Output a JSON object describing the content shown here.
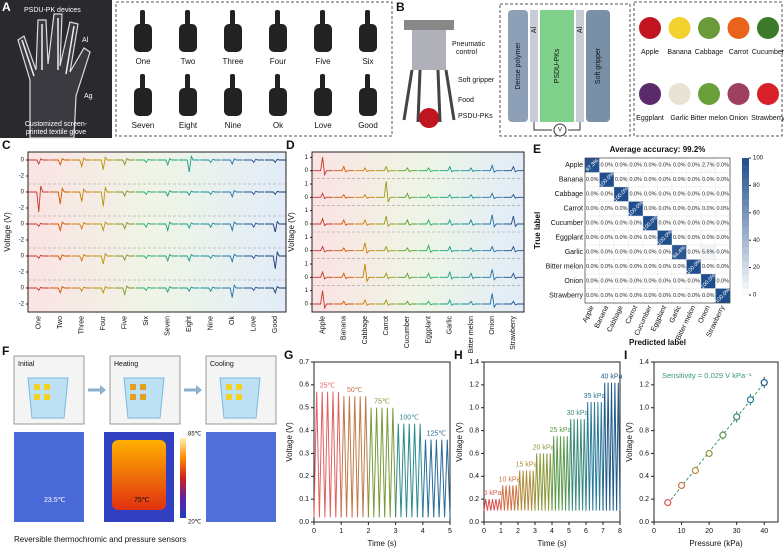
{
  "panels": {
    "A": {
      "letter": "A",
      "labels": [
        "PSDU-PK devices",
        "Al",
        "Ag",
        "Customized screen-",
        "printed textile glove"
      ],
      "gestures": [
        "One",
        "Two",
        "Three",
        "Four",
        "Five",
        "Six",
        "Seven",
        "Eight",
        "Nine",
        "Ok",
        "Love",
        "Good"
      ]
    },
    "B": {
      "letter": "B",
      "labels": [
        "Pneumatic",
        "control",
        "Soft gripper",
        "Food",
        "PSDU-PKs"
      ],
      "inset": [
        "Dense polymer",
        "Al",
        "PSDU-PKs",
        "Al",
        "Soft gripper",
        "V"
      ],
      "fruits": [
        {
          "name": "Apple",
          "color": "#c0141e"
        },
        {
          "name": "Banana",
          "color": "#f2d22e"
        },
        {
          "name": "Cabbage",
          "color": "#6a9a3a"
        },
        {
          "name": "Carrot",
          "color": "#e8641c"
        },
        {
          "name": "Cucumber",
          "color": "#3a7a2a"
        },
        {
          "name": "Eggplant",
          "color": "#5a2a6a"
        },
        {
          "name": "Garlic",
          "color": "#e8e2d4"
        },
        {
          "name": "Bitter melon",
          "color": "#6aa03a"
        },
        {
          "name": "Onion",
          "color": "#a04060"
        },
        {
          "name": "Strawberry",
          "color": "#d8202a"
        }
      ]
    },
    "F": {
      "letter": "F",
      "stages": [
        "Initial",
        "Heating",
        "Cooling"
      ],
      "temps": [
        "23.5℃",
        "75℃"
      ],
      "scale": [
        "85℃",
        "20℃"
      ],
      "caption": "Reversible thermochromic and pressure sensors"
    }
  },
  "chart_data": [
    {
      "type": "signal",
      "panel": "C",
      "ylabel": "Voltage (V)",
      "categories": [
        "One",
        "Two",
        "Three",
        "Four",
        "Five",
        "Six",
        "Seven",
        "Eight",
        "Nine",
        "Ok",
        "Love",
        "Good"
      ],
      "category_colors": [
        "#c0392b",
        "#d35400",
        "#c87f0a",
        "#b7950b",
        "#7d9a2a",
        "#27ae60",
        "#1e9c7a",
        "#16a085",
        "#1a8a9a",
        "#2471a3",
        "#1f4e8c",
        "#1a3a6a"
      ],
      "channel_ylim": [
        -3,
        1
      ],
      "channel_ticks": [
        0,
        -2
      ],
      "series": [
        {
          "values": [
            -0.5,
            -0.6,
            -0.8,
            -1.2,
            -0.6,
            -0.3,
            -0.6,
            -1.5,
            -0.3,
            -0.5,
            -0.3,
            -0.3
          ]
        },
        {
          "values": [
            -2.5,
            -1.5,
            -1.2,
            -1.8,
            -0.5,
            -0.3,
            -0.5,
            -0.4,
            -0.3,
            -0.6,
            -0.3,
            -0.3
          ]
        },
        {
          "values": [
            -0.3,
            -0.8,
            -0.6,
            -0.8,
            -0.6,
            -0.4,
            -0.8,
            -0.5,
            -0.4,
            -0.8,
            -0.4,
            -1.0
          ]
        },
        {
          "values": [
            -0.3,
            -0.5,
            -0.6,
            -1.0,
            -0.5,
            -0.3,
            -0.6,
            -0.6,
            -0.3,
            -0.7,
            -0.3,
            -1.6
          ]
        },
        {
          "values": [
            -0.3,
            -0.6,
            -0.4,
            -0.6,
            -0.8,
            -0.3,
            -0.5,
            -0.4,
            -0.4,
            -1.2,
            -0.3,
            -0.6
          ]
        }
      ]
    },
    {
      "type": "signal",
      "panel": "D",
      "ylabel": "Voltage (V)",
      "categories": [
        "Apple",
        "Banana",
        "Cabbage",
        "Carrot",
        "Cucumber",
        "Eggplant",
        "Garlic",
        "Bitter melon",
        "Onion",
        "Strawberry"
      ],
      "category_colors": [
        "#c0392b",
        "#d35400",
        "#c87f0a",
        "#9a9a1a",
        "#5aa02a",
        "#27ae60",
        "#16a085",
        "#1a8a9a",
        "#2471a3",
        "#1f4e8c"
      ],
      "channel_ylim": [
        -0.6,
        1.4
      ],
      "channel_ticks": [
        1,
        0
      ],
      "series": [
        {
          "values": [
            1.0,
            0.3,
            0.2,
            0.3,
            0.2,
            0.2,
            0.3,
            0.2,
            0.4,
            0.3
          ]
        },
        {
          "values": [
            0.3,
            0.2,
            0.2,
            1.2,
            0.3,
            0.2,
            0.2,
            0.2,
            0.3,
            0.2
          ]
        },
        {
          "values": [
            0.4,
            0.3,
            0.3,
            0.6,
            0.3,
            0.3,
            0.3,
            0.3,
            0.7,
            0.6
          ]
        },
        {
          "values": [
            0.3,
            0.2,
            0.6,
            0.3,
            0.2,
            0.4,
            0.3,
            0.2,
            0.3,
            0.3
          ]
        },
        {
          "values": [
            0.4,
            0.3,
            1.0,
            0.3,
            0.3,
            0.3,
            0.4,
            0.3,
            0.6,
            0.3
          ]
        },
        {
          "values": [
            1.0,
            0.2,
            0.3,
            0.3,
            0.2,
            0.2,
            0.3,
            0.2,
            0.8,
            0.2
          ]
        }
      ]
    },
    {
      "type": "heatmap",
      "panel": "E",
      "title": "Average accuracy: 99.2%",
      "xlabel": "Predicted label",
      "ylabel": "True label",
      "categories": [
        "Apple",
        "Banana",
        "Cabbage",
        "Carrot",
        "Cucumber",
        "Eggplant",
        "Garlic",
        "Bitter melon",
        "Onion",
        "Strawberry"
      ],
      "color": "#1f4e8c",
      "clim": [
        0,
        100
      ],
      "cticks": [
        0,
        20,
        40,
        60,
        80,
        100
      ],
      "values": [
        [
          97.3,
          0,
          0,
          0,
          0,
          0,
          0,
          0,
          2.7,
          0
        ],
        [
          0,
          100,
          0,
          0,
          0,
          0,
          0,
          0,
          0,
          0
        ],
        [
          0,
          0,
          100,
          0,
          0,
          0,
          0,
          0,
          0,
          0
        ],
        [
          0,
          0,
          0,
          100,
          0,
          0,
          0,
          0,
          0,
          0
        ],
        [
          0,
          0,
          0,
          0,
          100,
          0,
          0,
          0,
          0,
          0
        ],
        [
          0,
          0,
          0,
          0,
          0,
          100,
          0,
          0,
          0,
          0
        ],
        [
          0,
          0,
          0,
          0,
          0,
          0,
          94.4,
          0,
          5.6,
          0
        ],
        [
          0,
          0,
          0,
          0,
          0,
          0,
          0,
          100,
          0,
          0
        ],
        [
          0,
          0,
          0,
          0,
          0,
          0,
          0,
          0,
          100,
          0
        ],
        [
          0,
          0,
          0,
          0,
          0,
          0,
          0,
          0,
          0,
          100
        ]
      ],
      "value_labels": [
        [
          "97.3%",
          "0.0%",
          "0.0%",
          "0.0%",
          "0.0%",
          "0.0%",
          "0.0%",
          "0.0%",
          "2.7%",
          "0.0%"
        ],
        [
          "0.0%",
          "100.0%",
          "0.0%",
          "0.0%",
          "0.0%",
          "0.0%",
          "0.0%",
          "0.0%",
          "0.0%",
          "0.0%"
        ],
        [
          "0.0%",
          "0.0%",
          "100.0%",
          "0.0%",
          "0.0%",
          "0.0%",
          "0.0%",
          "0.0%",
          "0.0%",
          "0.0%"
        ],
        [
          "0.0%",
          "0.0%",
          "0.0%",
          "100.0%",
          "0.0%",
          "0.0%",
          "0.0%",
          "0.0%",
          "0.0%",
          "0.0%"
        ],
        [
          "0.0%",
          "0.0%",
          "0.0%",
          "0.0%",
          "100.0%",
          "0.0%",
          "0.0%",
          "0.0%",
          "0.0%",
          "0.0%"
        ],
        [
          "0.0%",
          "0.0%",
          "0.0%",
          "0.0%",
          "0.0%",
          "100.0%",
          "0.0%",
          "0.0%",
          "0.0%",
          "0.0%"
        ],
        [
          "0.0%",
          "0.0%",
          "0.0%",
          "0.0%",
          "0.0%",
          "0.0%",
          "94.4%",
          "0.0%",
          "5.6%",
          "0.0%"
        ],
        [
          "0.0%",
          "0.0%",
          "0.0%",
          "0.0%",
          "0.0%",
          "0.0%",
          "0.0%",
          "100.0%",
          "0.0%",
          "0.0%"
        ],
        [
          "0.0%",
          "0.0%",
          "0.0%",
          "0.0%",
          "0.0%",
          "0.0%",
          "0.0%",
          "0.0%",
          "100.0%",
          "0.0%"
        ],
        [
          "0.0%",
          "0.0%",
          "0.0%",
          "0.0%",
          "0.0%",
          "0.0%",
          "0.0%",
          "0.0%",
          "0.0%",
          "100.0%"
        ]
      ]
    },
    {
      "type": "line",
      "panel": "G",
      "xlabel": "Time (s)",
      "ylabel": "Voltage (V)",
      "xlim": [
        0,
        5
      ],
      "xticks": [
        0,
        1,
        2,
        3,
        4,
        5
      ],
      "ylim": [
        0,
        0.7
      ],
      "yticks": [
        {
          "value": 0,
          "label": "0.0"
        },
        0.1,
        0.2,
        0.3,
        0.4,
        0.5,
        0.6,
        0.7
      ],
      "series": [
        {
          "name": "25℃",
          "color": "#e06060",
          "x": [
            0,
            0.1,
            0.2,
            0.3,
            0.4,
            0.5,
            0.6,
            0.7,
            0.8,
            0.9,
            1
          ],
          "values": [
            0.02,
            0.57,
            0.02,
            0.57,
            0.02,
            0.57,
            0.02,
            0.57,
            0.02,
            0.57,
            0.02
          ]
        },
        {
          "name": "50℃",
          "color": "#c0784a",
          "x": [
            1,
            1.1,
            1.2,
            1.3,
            1.4,
            1.5,
            1.6,
            1.7,
            1.8,
            1.9,
            2
          ],
          "values": [
            0.02,
            0.55,
            0.02,
            0.55,
            0.02,
            0.55,
            0.02,
            0.55,
            0.02,
            0.55,
            0.02
          ]
        },
        {
          "name": "75℃",
          "color": "#7a9a3a",
          "x": [
            2,
            2.1,
            2.2,
            2.3,
            2.4,
            2.5,
            2.6,
            2.7,
            2.8,
            2.9,
            3
          ],
          "values": [
            0.02,
            0.5,
            0.02,
            0.5,
            0.02,
            0.5,
            0.02,
            0.5,
            0.02,
            0.5,
            0.02
          ]
        },
        {
          "name": "100℃",
          "color": "#2e8b8b",
          "x": [
            3,
            3.1,
            3.2,
            3.3,
            3.4,
            3.5,
            3.6,
            3.7,
            3.8,
            3.9,
            4
          ],
          "values": [
            0.02,
            0.43,
            0.02,
            0.43,
            0.02,
            0.43,
            0.02,
            0.43,
            0.02,
            0.43,
            0.02
          ]
        },
        {
          "name": "125℃",
          "color": "#2a6a9a",
          "x": [
            4,
            4.1,
            4.2,
            4.3,
            4.4,
            4.5,
            4.6,
            4.7,
            4.8,
            4.9,
            5
          ],
          "values": [
            0.02,
            0.36,
            0.02,
            0.36,
            0.02,
            0.36,
            0.02,
            0.36,
            0.02,
            0.36,
            0.02
          ]
        }
      ]
    },
    {
      "type": "line",
      "panel": "H",
      "xlabel": "Time (s)",
      "ylabel": "Voltage (V)",
      "xlim": [
        0,
        8
      ],
      "xticks": [
        0,
        1,
        2,
        3,
        4,
        5,
        6,
        7,
        8
      ],
      "ylim": [
        0,
        1.4
      ],
      "yticks": [
        {
          "value": 0,
          "label": "0.0"
        },
        0.2,
        0.4,
        0.6,
        0.8,
        {
          "value": 1,
          "label": "1.0"
        },
        1.2,
        1.4
      ],
      "series": [
        {
          "name": "5 kPa",
          "color": "#e05050",
          "x": [
            0,
            0.1,
            0.2,
            0.3,
            0.4,
            0.5,
            0.6,
            0.7,
            0.8,
            0.9,
            1
          ],
          "values": [
            0.1,
            0.2,
            0.1,
            0.2,
            0.1,
            0.2,
            0.1,
            0.2,
            0.1,
            0.2,
            0.1
          ]
        },
        {
          "name": "10 kPa",
          "color": "#d07040",
          "x": [
            1,
            1.1,
            1.2,
            1.3,
            1.4,
            1.5,
            1.6,
            1.7,
            1.8,
            1.9,
            2
          ],
          "values": [
            0.1,
            0.32,
            0.1,
            0.32,
            0.1,
            0.32,
            0.1,
            0.32,
            0.1,
            0.32,
            0.1
          ]
        },
        {
          "name": "15 kPa",
          "color": "#b08a3a",
          "x": [
            2,
            2.1,
            2.2,
            2.3,
            2.4,
            2.5,
            2.6,
            2.7,
            2.8,
            2.9,
            3
          ],
          "values": [
            0.1,
            0.45,
            0.1,
            0.45,
            0.1,
            0.45,
            0.1,
            0.45,
            0.1,
            0.45,
            0.1
          ]
        },
        {
          "name": "20 kPa",
          "color": "#8a9a3a",
          "x": [
            3,
            3.1,
            3.2,
            3.3,
            3.4,
            3.5,
            3.6,
            3.7,
            3.8,
            3.9,
            4
          ],
          "values": [
            0.1,
            0.6,
            0.1,
            0.6,
            0.1,
            0.6,
            0.1,
            0.6,
            0.1,
            0.6,
            0.1
          ]
        },
        {
          "name": "25 kPa",
          "color": "#5a9a4a",
          "x": [
            4,
            4.1,
            4.2,
            4.3,
            4.4,
            4.5,
            4.6,
            4.7,
            4.8,
            4.9,
            5
          ],
          "values": [
            0.1,
            0.75,
            0.1,
            0.75,
            0.1,
            0.75,
            0.1,
            0.75,
            0.1,
            0.75,
            0.1
          ]
        },
        {
          "name": "30 kPa",
          "color": "#3a8a7a",
          "x": [
            5,
            5.1,
            5.2,
            5.3,
            5.4,
            5.5,
            5.6,
            5.7,
            5.8,
            5.9,
            6
          ],
          "values": [
            0.1,
            0.9,
            0.1,
            0.9,
            0.1,
            0.9,
            0.1,
            0.9,
            0.1,
            0.9,
            0.1
          ]
        },
        {
          "name": "35 kPa",
          "color": "#2a7a9a",
          "x": [
            6,
            6.1,
            6.2,
            6.3,
            6.4,
            6.5,
            6.6,
            6.7,
            6.8,
            6.9,
            7
          ],
          "values": [
            0.1,
            1.05,
            0.1,
            1.05,
            0.1,
            1.05,
            0.1,
            1.05,
            0.1,
            1.05,
            0.1
          ]
        },
        {
          "name": "40 kPa",
          "color": "#1f5a8a",
          "x": [
            7,
            7.1,
            7.2,
            7.3,
            7.4,
            7.5,
            7.6,
            7.7,
            7.8,
            7.9,
            8
          ],
          "values": [
            0.1,
            1.22,
            0.1,
            1.22,
            0.1,
            1.22,
            0.1,
            1.22,
            0.1,
            1.22,
            0.1
          ]
        }
      ]
    },
    {
      "type": "scatter",
      "panel": "I",
      "xlabel": "Pressure (kPa)",
      "ylabel": "Voltage (V)",
      "annotation": "Sensitivity = 0.029 V kPa⁻¹",
      "xlim": [
        0,
        45
      ],
      "xticks": [
        0,
        10,
        20,
        30,
        40
      ],
      "ylim": [
        0,
        1.4
      ],
      "yticks": [
        {
          "value": 0,
          "label": "0.0"
        },
        0.2,
        0.4,
        0.6,
        0.8,
        {
          "value": 1,
          "label": "1.0"
        },
        1.2,
        1.4
      ],
      "x": [
        5,
        10,
        15,
        20,
        25,
        30,
        35,
        40
      ],
      "values": [
        0.17,
        0.32,
        0.45,
        0.6,
        0.76,
        0.92,
        1.07,
        1.22
      ],
      "errors": [
        0.02,
        0.03,
        0.03,
        0.03,
        0.04,
        0.05,
        0.05,
        0.05
      ],
      "colors": [
        "#e05050",
        "#d07040",
        "#b08a3a",
        "#8a9a3a",
        "#5a9a4a",
        "#3a8a7a",
        "#2a7a9a",
        "#1f5a8a"
      ],
      "fit_color": "#3a9a6a"
    }
  ]
}
